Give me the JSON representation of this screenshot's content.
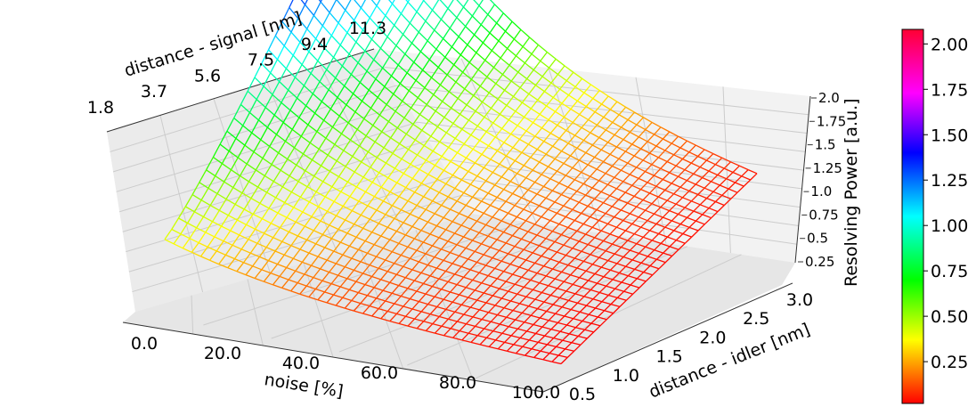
{
  "chart_data": {
    "type": "surface3d-wireframe",
    "title": "",
    "x_axis": {
      "label": "noise [%]",
      "range": [
        0,
        100
      ],
      "ticks": [
        "0.0",
        "20.0",
        "40.0",
        "60.0",
        "80.0",
        "100.0"
      ]
    },
    "y_axis": {
      "label": "distance - idler [nm]",
      "range": [
        0.5,
        3.0
      ],
      "ticks": [
        "0.5",
        "1.0",
        "1.5",
        "2.0",
        "2.5",
        "3.0"
      ]
    },
    "secondary_axis": {
      "label": "distance - signal [nm]",
      "ticks": [
        "1.8",
        "3.7",
        "5.6",
        "7.5",
        "9.4",
        "11.3"
      ]
    },
    "z_axis": {
      "label": "Resolving Power [a.u.]",
      "range": [
        0,
        2.1
      ],
      "ticks": [
        "0.25",
        "0.5",
        "0.75",
        "1.0",
        "1.25",
        "1.5",
        "1.75",
        "2.0"
      ]
    },
    "colorbar": {
      "colormap": "hsv",
      "range": [
        0.02,
        2.08
      ],
      "ticks": [
        "0.25",
        "0.50",
        "0.75",
        "1.00",
        "1.25",
        "1.50",
        "1.75",
        "2.00"
      ]
    },
    "surface_corners": [
      {
        "noise": 0,
        "idler": 0.5,
        "z": 0.4
      },
      {
        "noise": 0,
        "idler": 3.0,
        "z": 2.08
      },
      {
        "noise": 100,
        "idler": 0.5,
        "z": 0.02
      },
      {
        "noise": 100,
        "idler": 3.0,
        "z": 0.05
      }
    ],
    "grid": true
  }
}
